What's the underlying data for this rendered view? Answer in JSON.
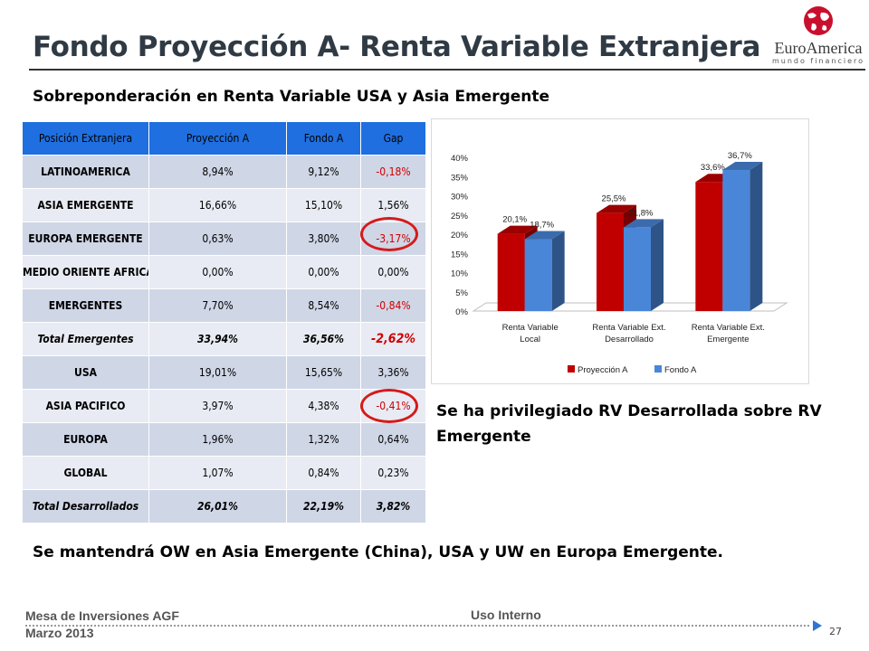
{
  "slide": {
    "title": "Fondo Proyección A- Renta Variable Extranjera",
    "subtitle": "Sobreponderación en Renta Variable USA y Asia Emergente",
    "comment_developed": "Se ha privilegiado RV Desarrollada sobre RV Emergente",
    "conclusion": "Se mantendrá OW en Asia Emergente (China),  USA y UW en Europa Emergente."
  },
  "logo": {
    "name": "EuroAmerica",
    "tagline": "mundo financiero"
  },
  "table": {
    "headers": [
      "Posición Extranjera",
      "Proyección A",
      "Fondo A",
      "Gap"
    ],
    "rows": [
      {
        "label": "LATINOAMERICA",
        "proy": "8,94%",
        "fondo": "9,12%",
        "gap": "-0,18%",
        "neg": true,
        "total": false
      },
      {
        "label": "ASIA EMERGENTE",
        "proy": "16,66%",
        "fondo": "15,10%",
        "gap": "1,56%",
        "neg": false,
        "total": false
      },
      {
        "label": "EUROPA EMERGENTE",
        "proy": "0,63%",
        "fondo": "3,80%",
        "gap": "-3,17%",
        "neg": true,
        "total": false
      },
      {
        "label": "MEDIO ORIENTE AFRICA",
        "proy": "0,00%",
        "fondo": "0,00%",
        "gap": "0,00%",
        "neg": false,
        "total": false
      },
      {
        "label": "EMERGENTES",
        "proy": "7,70%",
        "fondo": "8,54%",
        "gap": "-0,84%",
        "neg": true,
        "total": false
      },
      {
        "label": "Total Emergentes",
        "proy": "33,94%",
        "fondo": "36,56%",
        "gap": "-2,62%",
        "neg": true,
        "total": true
      },
      {
        "label": "USA",
        "proy": "19,01%",
        "fondo": "15,65%",
        "gap": "3,36%",
        "neg": false,
        "total": false
      },
      {
        "label": "ASIA PACIFICO",
        "proy": "3,97%",
        "fondo": "4,38%",
        "gap": "-0,41%",
        "neg": true,
        "total": false
      },
      {
        "label": "EUROPA",
        "proy": "1,96%",
        "fondo": "1,32%",
        "gap": "0,64%",
        "neg": false,
        "total": false
      },
      {
        "label": "GLOBAL",
        "proy": "1,07%",
        "fondo": "0,84%",
        "gap": "0,23%",
        "neg": false,
        "total": false
      },
      {
        "label": "Total Desarrollados",
        "proy": "26,01%",
        "fondo": "22,19%",
        "gap": "3,82%",
        "neg": false,
        "total": true
      }
    ]
  },
  "chart_data": {
    "type": "bar",
    "categories": [
      [
        "Renta Variable",
        "Local"
      ],
      [
        "Renta Variable  Ext.",
        "Desarrollado"
      ],
      [
        "Renta Variable  Ext.",
        "Emergente"
      ]
    ],
    "series": [
      {
        "name": "Proyección A",
        "values": [
          20.1,
          25.5,
          33.6
        ],
        "labels": [
          "20,1%",
          "25,5%",
          "33,6%"
        ],
        "color": "#c00000"
      },
      {
        "name": "Fondo A",
        "values": [
          18.7,
          21.8,
          36.7
        ],
        "labels": [
          "18,7%",
          "21,8%",
          "36,7%"
        ],
        "color": "#4a86d8"
      }
    ],
    "ylim": [
      0,
      40
    ],
    "yticks": [
      "0%",
      "5%",
      "10%",
      "15%",
      "20%",
      "25%",
      "30%",
      "35%",
      "40%"
    ],
    "legend": "bottom",
    "grid": false,
    "style": "3d"
  },
  "footer": {
    "left_line1": "Mesa de Inversiones AGF",
    "left_line2": "Marzo 2013",
    "center": "Uso Interno",
    "page": "27"
  }
}
